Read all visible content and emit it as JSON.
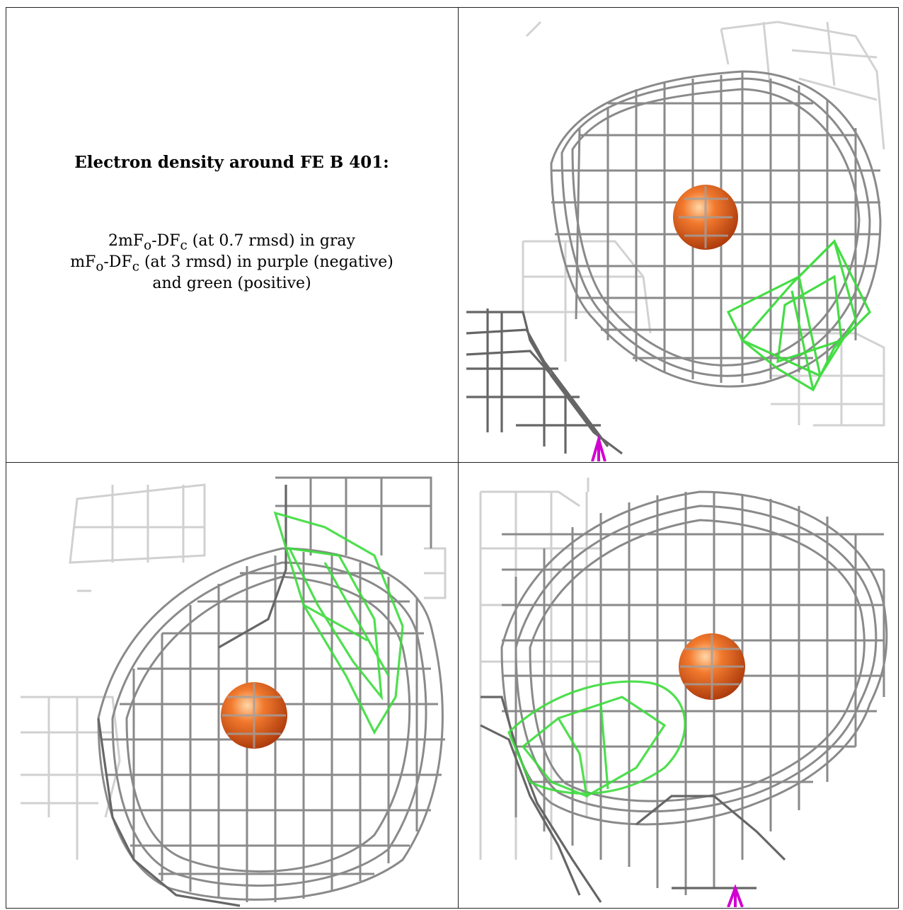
{
  "legend": {
    "title": "Electron density around FE B 401:",
    "line1": "2mFo-DFc (at 0.7 rmsd) in gray",
    "line2": "mFo-DFc (at 3 rmsd) in purple (negative)",
    "line3": "and green (positive)"
  },
  "colors": {
    "map_2fofc": "#9a9a9a",
    "map_fofc_positive": "#3cdc3c",
    "map_fofc_negative": "#d100d1",
    "atom": "#e8601c"
  },
  "panels": [
    {
      "view": "view-1",
      "atom": "FE"
    },
    {
      "view": "view-2",
      "atom": "FE"
    },
    {
      "view": "view-3",
      "atom": "FE"
    }
  ]
}
